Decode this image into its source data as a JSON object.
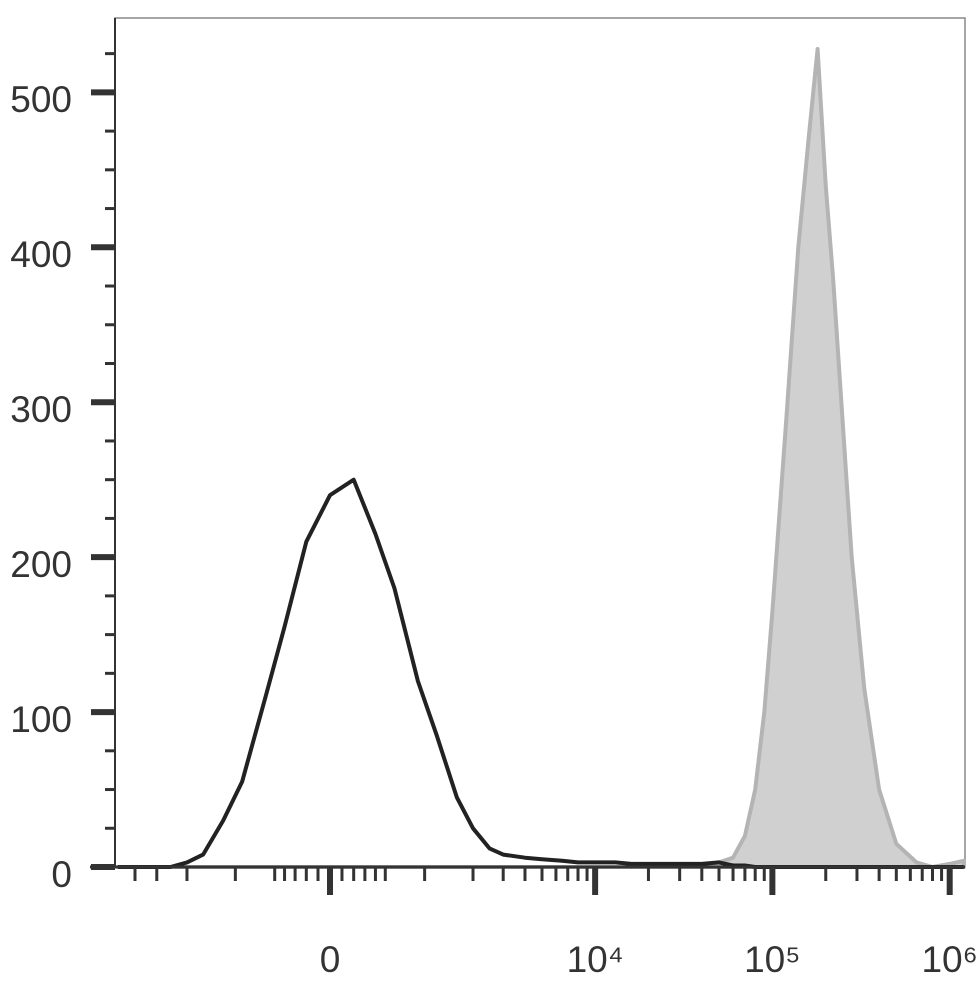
{
  "chart_data": {
    "type": "histogram-line",
    "xscale": "arcsinh",
    "x": [
      -5000,
      -4000,
      -3000,
      -2500,
      -2000,
      -1600,
      -1200,
      -900,
      -600,
      -400,
      -200,
      0,
      200,
      400,
      600,
      900,
      1200,
      1600,
      2000,
      2500,
      3000,
      4000,
      5000,
      6500,
      8000,
      10000,
      13000,
      16000,
      20000,
      25000,
      32000,
      40000,
      50000,
      60000,
      70000,
      80000,
      90000,
      100000,
      120000,
      140000,
      160000,
      180000,
      200000,
      220000,
      250000,
      280000,
      330000,
      400000,
      500000,
      650000,
      800000,
      1000000,
      1200000
    ],
    "series": [
      {
        "color": "#b4b4b4",
        "fill": "#d0d0d0",
        "values": [
          0,
          0,
          0,
          0,
          0,
          0,
          0,
          0,
          0,
          0,
          0,
          0,
          0,
          0,
          0,
          0,
          0,
          0,
          0,
          0,
          0,
          0,
          0,
          0,
          0,
          0,
          0,
          0,
          0,
          0,
          0,
          1,
          3,
          6,
          20,
          50,
          100,
          165,
          290,
          400,
          470,
          528,
          440,
          380,
          285,
          200,
          115,
          50,
          15,
          3,
          0,
          2,
          4
        ]
      },
      {
        "color": "#222222",
        "values": [
          0,
          0,
          0,
          0,
          3,
          8,
          30,
          55,
          110,
          155,
          210,
          240,
          250,
          215,
          180,
          120,
          85,
          45,
          25,
          12,
          8,
          6,
          5,
          4,
          3,
          3,
          3,
          2,
          2,
          2,
          2,
          2,
          3,
          1,
          1,
          0,
          0,
          0,
          0,
          0,
          0,
          0,
          0,
          0,
          0,
          0,
          0,
          0,
          0,
          0,
          0,
          0,
          0
        ]
      }
    ],
    "xlim": [
      -5200,
      1220000
    ],
    "xticks": [
      {
        "value": 0,
        "label": "0"
      },
      {
        "value": 10000,
        "label": "10⁴"
      },
      {
        "value": 100000,
        "label": "10⁵"
      },
      {
        "value": 1000000,
        "label": "10⁶"
      }
    ],
    "xminorticks": [
      -4000,
      -3000,
      -2000,
      -1000,
      -500,
      -400,
      -300,
      -200,
      -100,
      100,
      200,
      300,
      400,
      500,
      1000,
      2000,
      3000,
      4000,
      5000,
      6000,
      7000,
      8000,
      9000,
      20000,
      30000,
      40000,
      50000,
      60000,
      70000,
      80000,
      90000,
      200000,
      300000,
      400000,
      500000,
      600000,
      700000,
      800000,
      900000
    ],
    "ylim": [
      0,
      548
    ],
    "yticks": [
      0,
      100,
      200,
      300,
      400,
      500
    ],
    "yminorticks": [
      25,
      50,
      75,
      125,
      150,
      175,
      225,
      250,
      275,
      325,
      350,
      375,
      425,
      450,
      475,
      525
    ]
  }
}
